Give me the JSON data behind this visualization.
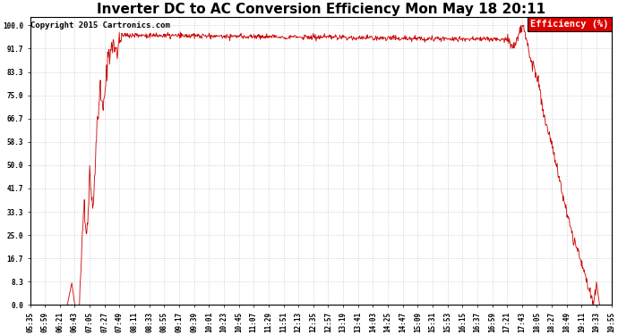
{
  "title": "Inverter DC to AC Conversion Efficiency Mon May 18 20:11",
  "copyright": "Copyright 2015 Cartronics.com",
  "legend_label": "Efficiency (%)",
  "legend_bg": "#dd0000",
  "legend_text_color": "#ffffff",
  "line_color": "#cc0000",
  "background_color": "#ffffff",
  "grid_color": "#bbbbbb",
  "ylabel_values": [
    0.0,
    8.3,
    16.7,
    25.0,
    33.3,
    41.7,
    50.0,
    58.3,
    66.7,
    75.0,
    83.3,
    91.7,
    100.0
  ],
  "xtick_labels": [
    "05:35",
    "05:59",
    "06:21",
    "06:43",
    "07:05",
    "07:27",
    "07:49",
    "08:11",
    "08:33",
    "08:55",
    "09:17",
    "09:39",
    "10:01",
    "10:23",
    "10:45",
    "11:07",
    "11:29",
    "11:51",
    "12:13",
    "12:35",
    "12:57",
    "13:19",
    "13:41",
    "14:03",
    "14:25",
    "14:47",
    "15:09",
    "15:31",
    "15:53",
    "16:15",
    "16:37",
    "16:59",
    "17:21",
    "17:43",
    "18:05",
    "18:27",
    "18:49",
    "19:11",
    "19:33",
    "19:55"
  ],
  "title_fontsize": 11,
  "copyright_fontsize": 6.5,
  "tick_fontsize": 5.5,
  "legend_fontsize": 7.5,
  "figwidth": 6.9,
  "figheight": 3.75,
  "dpi": 100
}
